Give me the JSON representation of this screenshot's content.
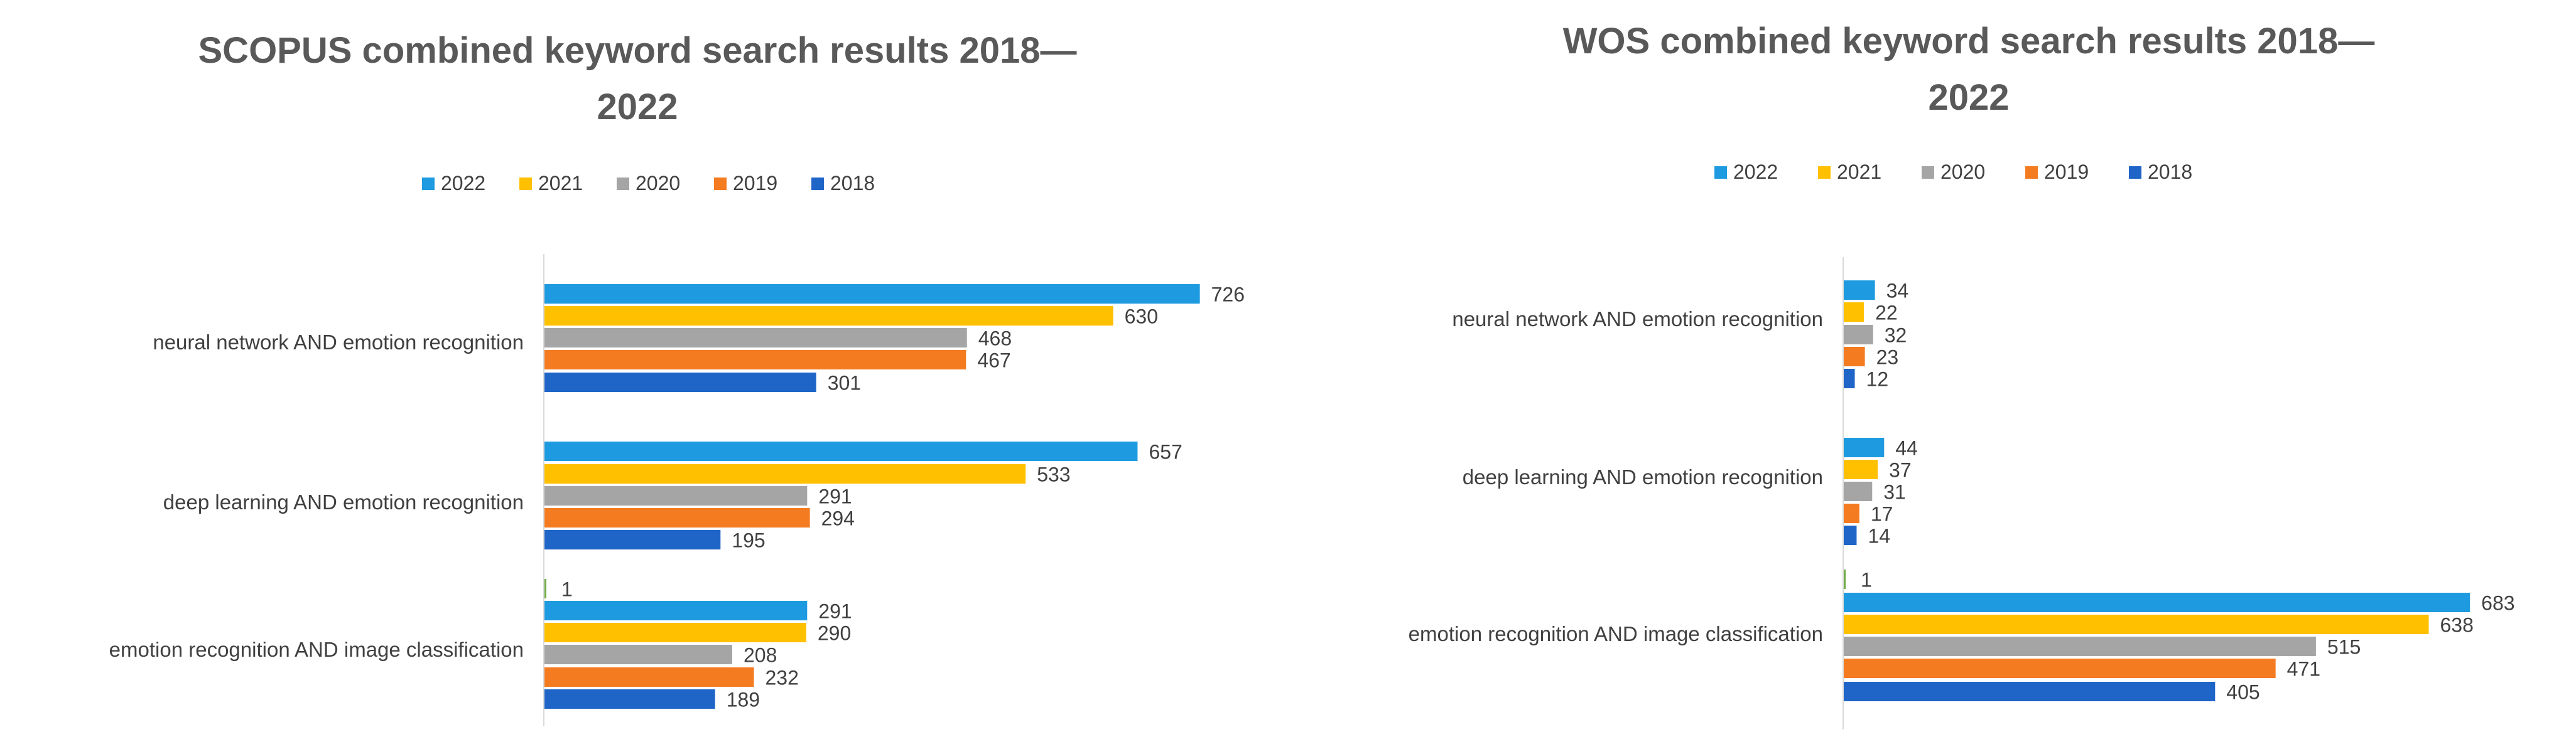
{
  "chart_data": [
    {
      "type": "bar",
      "orientation": "horizontal",
      "title_lines": [
        "SCOPUS combined keyword search results 2018—",
        "2022"
      ],
      "categories": [
        "neural network AND emotion recognition",
        "deep learning AND emotion recognition",
        "emotion recognition AND image classification"
      ],
      "extra_series": {
        "category_index": 2,
        "value": 1,
        "label": "1",
        "color": "#70AD47"
      },
      "series": [
        {
          "name": "2022",
          "color": "#1E9BE0",
          "values": [
            726,
            657,
            291
          ],
          "labels": [
            "726",
            "657",
            "291"
          ]
        },
        {
          "name": "2021",
          "color": "#FFC000",
          "values": [
            630,
            533,
            290
          ],
          "labels": [
            "630",
            "533",
            "290"
          ]
        },
        {
          "name": "2020",
          "color": "#A5A5A5",
          "values": [
            468,
            291,
            208
          ],
          "labels": [
            "468",
            "291",
            "208"
          ]
        },
        {
          "name": "2019",
          "color": "#F47B20",
          "values": [
            467,
            294,
            232
          ],
          "labels": [
            "467",
            "294",
            "232"
          ]
        },
        {
          "name": "2018",
          "color": "#1F65C8",
          "values": [
            301,
            195,
            189
          ],
          "labels": [
            "301",
            "195",
            "189"
          ]
        }
      ],
      "xlim": [
        0,
        800
      ],
      "grid": false,
      "legend_position": "top"
    },
    {
      "type": "bar",
      "orientation": "horizontal",
      "title_lines": [
        "WOS combined keyword search results 2018—",
        "2022"
      ],
      "categories": [
        "neural network AND emotion recognition",
        "deep learning AND emotion recognition",
        "emotion recognition AND image classification"
      ],
      "extra_series": {
        "category_index": 2,
        "value": 1,
        "label": "1",
        "color": "#70AD47"
      },
      "series": [
        {
          "name": "2022",
          "color": "#1E9BE0",
          "values": [
            34,
            44,
            683
          ],
          "labels": [
            "34",
            "44",
            "683"
          ]
        },
        {
          "name": "2021",
          "color": "#FFC000",
          "values": [
            22,
            37,
            638
          ],
          "labels": [
            "22",
            "37",
            "638"
          ]
        },
        {
          "name": "2020",
          "color": "#A5A5A5",
          "values": [
            32,
            31,
            515
          ],
          "labels": [
            "32",
            "31",
            "515"
          ]
        },
        {
          "name": "2019",
          "color": "#F47B20",
          "values": [
            23,
            17,
            471
          ],
          "labels": [
            "23",
            "17",
            "471"
          ]
        },
        {
          "name": "2018",
          "color": "#1F65C8",
          "values": [
            12,
            14,
            405
          ],
          "labels": [
            "12",
            "14",
            "405"
          ]
        }
      ],
      "xlim": [
        0,
        700
      ],
      "grid": false,
      "legend_position": "top"
    }
  ]
}
